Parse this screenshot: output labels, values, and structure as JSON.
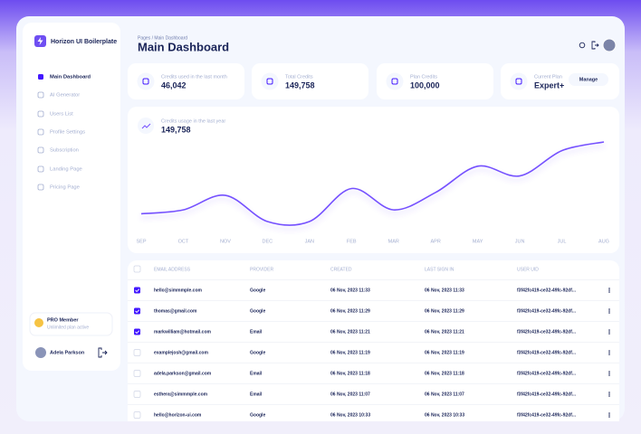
{
  "sidebar": {
    "brand": "Horizon UI Boilerplate",
    "nav": [
      "Main Dashboard",
      "AI Generator",
      "Users List",
      "Profile Settings",
      "Subscription",
      "Landing Page",
      "Pricing Page"
    ],
    "pro": {
      "title": "PRO Member",
      "subtitle": "Unlimited plan active"
    },
    "user": "Adela Parkson"
  },
  "header": {
    "breadcrumb": "Pages / Main Dashboard",
    "title": "Main Dashboard"
  },
  "stats": [
    {
      "label": "Credits used in the last month",
      "value": "46,042"
    },
    {
      "label": "Total Credits",
      "value": "149,758"
    },
    {
      "label": "Plan Credits",
      "value": "100,000"
    },
    {
      "label": "Current Plan",
      "value": "Expert+",
      "action": "Manage"
    }
  ],
  "usage_chart": {
    "type": "line",
    "label": "Credits usage in the last year",
    "total": "149,758",
    "categories": [
      "SEP",
      "OCT",
      "NOV",
      "DEC",
      "JAN",
      "FEB",
      "MAR",
      "APR",
      "MAY",
      "JUN",
      "JUL",
      "AUG"
    ],
    "values": [
      38,
      42,
      57,
      30,
      30,
      64,
      42,
      60,
      87,
      77,
      103,
      112
    ],
    "color": "#7551ff"
  },
  "table": {
    "columns": [
      "EMAIL ADDRESS",
      "PROVIDER",
      "CREATED",
      "LAST SIGN IN",
      "USER UID"
    ],
    "rows": [
      {
        "email": "hello@simmmple.com",
        "provider": "Google",
        "created": "06 Nov, 2023 11:33",
        "last_sign_in": "06 Nov, 2023 11:33",
        "uid": "f3f42fc419-ce32-49fc-92df...",
        "selected": true
      },
      {
        "email": "thomas@gmail.com",
        "provider": "Google",
        "created": "06 Nov, 2023 11:29",
        "last_sign_in": "06 Nov, 2023 11:29",
        "uid": "f3f42fc419-ce32-49fc-92df...",
        "selected": true
      },
      {
        "email": "markwilliam@hotmail.com",
        "provider": "Email",
        "created": "06 Nov, 2023 11:21",
        "last_sign_in": "06 Nov, 2023 11:21",
        "uid": "f3f42fc419-ce32-49fc-92df...",
        "selected": true
      },
      {
        "email": "examplejosh@gmail.com",
        "provider": "Google",
        "created": "06 Nov, 2023 11:19",
        "last_sign_in": "06 Nov, 2023 11:19",
        "uid": "f3f42fc419-ce32-49fc-92df...",
        "selected": false
      },
      {
        "email": "adela.parkson@gmail.com",
        "provider": "Email",
        "created": "06 Nov, 2023 11:18",
        "last_sign_in": "06 Nov, 2023 11:18",
        "uid": "f3f42fc419-ce32-49fc-92df...",
        "selected": false
      },
      {
        "email": "esthera@simmmple.com",
        "provider": "Email",
        "created": "06 Nov, 2023 11:07",
        "last_sign_in": "06 Nov, 2023 11:07",
        "uid": "f3f42fc419-ce32-49fc-92df...",
        "selected": false
      },
      {
        "email": "hello@horizon-ui.com",
        "provider": "Google",
        "created": "06 Nov, 2023 10:33",
        "last_sign_in": "06 Nov, 2023 10:33",
        "uid": "f3f42fc419-ce32-49fc-92df...",
        "selected": false
      }
    ]
  }
}
